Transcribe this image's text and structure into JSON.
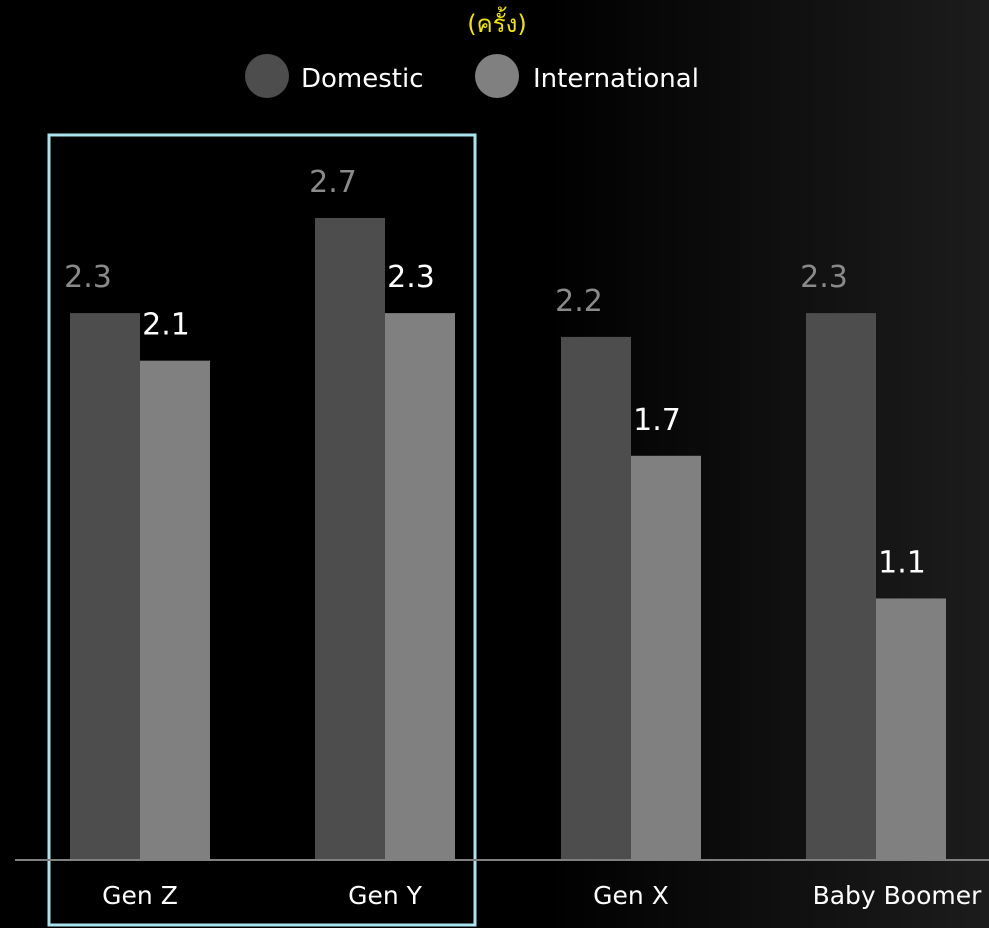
{
  "chart_data": {
    "type": "bar",
    "unit_label": "(ครั้ง)",
    "categories": [
      "Gen Z",
      "Gen Y",
      "Gen X",
      "Baby Boomer"
    ],
    "series": [
      {
        "name": "Domestic",
        "values": [
          2.3,
          2.7,
          2.2,
          2.3
        ],
        "labels": [
          "2.3",
          "2.7",
          "2.2",
          "2.3"
        ],
        "color": "#4d4d4d"
      },
      {
        "name": "International",
        "values": [
          2.1,
          2.3,
          1.7,
          1.1
        ],
        "labels": [
          "2.1",
          "2.3",
          "1.7",
          "1.1"
        ],
        "color": "#808080"
      }
    ],
    "ylim": [
      0,
      2.7
    ],
    "grid": false,
    "legend_position": "top-center",
    "highlight_categories": [
      "Gen Z",
      "Gen Y"
    ],
    "highlight_color": "#a8e4ee",
    "unit_color": "#f2e600"
  }
}
